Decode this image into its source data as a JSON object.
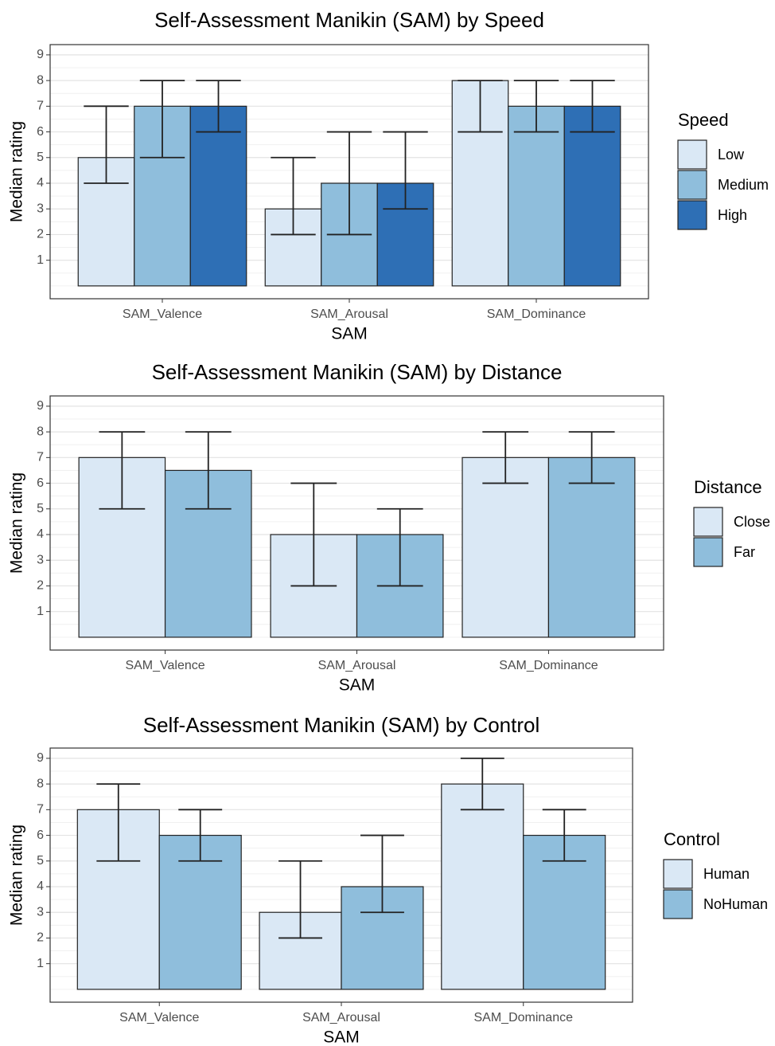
{
  "chart_data": [
    {
      "type": "bar",
      "title": "Self-Assessment Manikin (SAM) by Speed",
      "x_label": "SAM",
      "y_label": "Median rating",
      "legend_title": "Speed",
      "categories": [
        "SAM_Valence",
        "SAM_Arousal",
        "SAM_Dominance"
      ],
      "ylim": [
        -0.5,
        9.4
      ],
      "yticks": [
        1,
        2,
        3,
        4,
        5,
        6,
        7,
        8,
        9
      ],
      "grid": true,
      "series": [
        {
          "name": "Low",
          "color": "#dae8f5",
          "values": [
            5,
            3,
            8
          ],
          "lower": [
            4,
            2,
            6
          ],
          "upper": [
            7,
            5,
            8
          ]
        },
        {
          "name": "Medium",
          "color": "#8fbedc",
          "values": [
            7,
            4,
            7
          ],
          "lower": [
            5,
            2,
            6
          ],
          "upper": [
            8,
            6,
            8
          ]
        },
        {
          "name": "High",
          "color": "#2e6fb5",
          "values": [
            7,
            4,
            7
          ],
          "lower": [
            6,
            3,
            6
          ],
          "upper": [
            8,
            6,
            8
          ]
        }
      ]
    },
    {
      "type": "bar",
      "title": "Self-Assessment Manikin (SAM) by Distance",
      "x_label": "SAM",
      "y_label": "Median rating",
      "legend_title": "Distance",
      "categories": [
        "SAM_Valence",
        "SAM_Arousal",
        "SAM_Dominance"
      ],
      "ylim": [
        -0.5,
        9.4
      ],
      "yticks": [
        1,
        2,
        3,
        4,
        5,
        6,
        7,
        8,
        9
      ],
      "grid": true,
      "series": [
        {
          "name": "Close",
          "color": "#dae8f5",
          "values": [
            7,
            4,
            7
          ],
          "lower": [
            5,
            2,
            6
          ],
          "upper": [
            8,
            6,
            8
          ]
        },
        {
          "name": "Far",
          "color": "#8fbedc",
          "values": [
            6.5,
            4,
            7
          ],
          "lower": [
            5,
            2,
            6
          ],
          "upper": [
            8,
            5,
            8
          ]
        }
      ]
    },
    {
      "type": "bar",
      "title": "Self-Assessment Manikin (SAM) by Control",
      "x_label": "SAM",
      "y_label": "Median rating",
      "legend_title": "Control",
      "categories": [
        "SAM_Valence",
        "SAM_Arousal",
        "SAM_Dominance"
      ],
      "ylim": [
        -0.5,
        9.4
      ],
      "yticks": [
        1,
        2,
        3,
        4,
        5,
        6,
        7,
        8,
        9
      ],
      "grid": true,
      "series": [
        {
          "name": "Human",
          "color": "#dae8f5",
          "values": [
            7,
            3,
            8
          ],
          "lower": [
            5,
            2,
            7
          ],
          "upper": [
            8,
            5,
            9
          ]
        },
        {
          "name": "NoHuman",
          "color": "#8fbedc",
          "values": [
            6,
            4,
            6
          ],
          "lower": [
            5,
            3,
            5
          ],
          "upper": [
            7,
            6,
            7
          ]
        }
      ]
    }
  ]
}
